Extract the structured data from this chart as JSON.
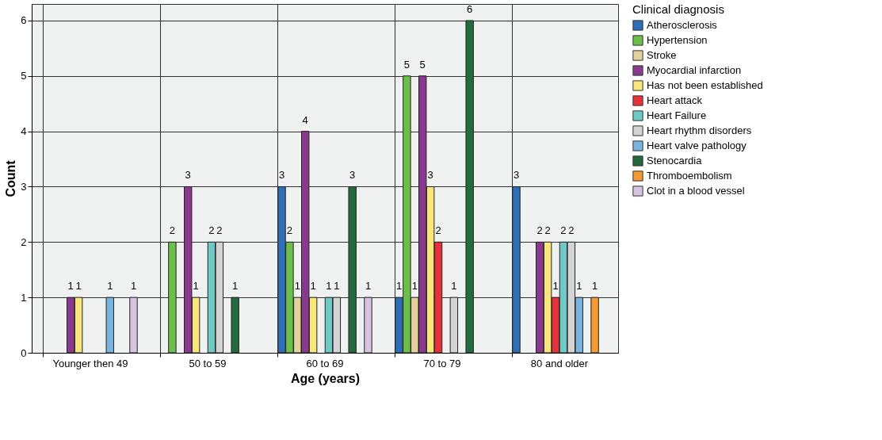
{
  "chart_data": {
    "type": "bar",
    "xlabel": "Age (years)",
    "ylabel": "Count",
    "legend_title": "Clinical diagnosis",
    "categories": [
      "Younger then 49",
      "50 to 59",
      "60 to 69",
      "70 to 79",
      "80 and older"
    ],
    "series": [
      {
        "name": "Atherosclerosis",
        "color": "#2f6db5",
        "values": [
          null,
          null,
          3,
          1,
          3
        ]
      },
      {
        "name": "Hypertension",
        "color": "#6cbf4b",
        "values": [
          null,
          2,
          2,
          5,
          null
        ]
      },
      {
        "name": "Stroke",
        "color": "#e4d29c",
        "values": [
          null,
          null,
          1,
          1,
          null
        ]
      },
      {
        "name": "Myocardial infarction",
        "color": "#8a3a8e",
        "values": [
          1,
          3,
          4,
          5,
          2
        ]
      },
      {
        "name": "Has not been established",
        "color": "#f8e67a",
        "values": [
          1,
          1,
          1,
          3,
          2
        ]
      },
      {
        "name": "Heart attack",
        "color": "#e8313a",
        "values": [
          null,
          null,
          null,
          2,
          1
        ]
      },
      {
        "name": "Heart Failure",
        "color": "#6fc9c4",
        "values": [
          null,
          2,
          1,
          null,
          2
        ]
      },
      {
        "name": "Heart rhythm disorders",
        "color": "#d4d4d4",
        "values": [
          null,
          2,
          1,
          1,
          2
        ]
      },
      {
        "name": "Heart valve pathology",
        "color": "#7ab4e0",
        "values": [
          1,
          null,
          null,
          null,
          1
        ]
      },
      {
        "name": "Stenocardia",
        "color": "#246a3c",
        "values": [
          null,
          1,
          3,
          6,
          null
        ]
      },
      {
        "name": "Thromboembolism",
        "color": "#f39a32",
        "values": [
          null,
          null,
          null,
          null,
          1
        ]
      },
      {
        "name": "Clot in a blood vessel",
        "color": "#d6c4e0",
        "values": [
          1,
          null,
          1,
          null,
          null
        ]
      }
    ],
    "ylim": [
      0,
      6.3
    ],
    "yticks": [
      0,
      1,
      2,
      3,
      4,
      5,
      6
    ],
    "grid": true,
    "legend": "top right",
    "data_labels": true
  }
}
